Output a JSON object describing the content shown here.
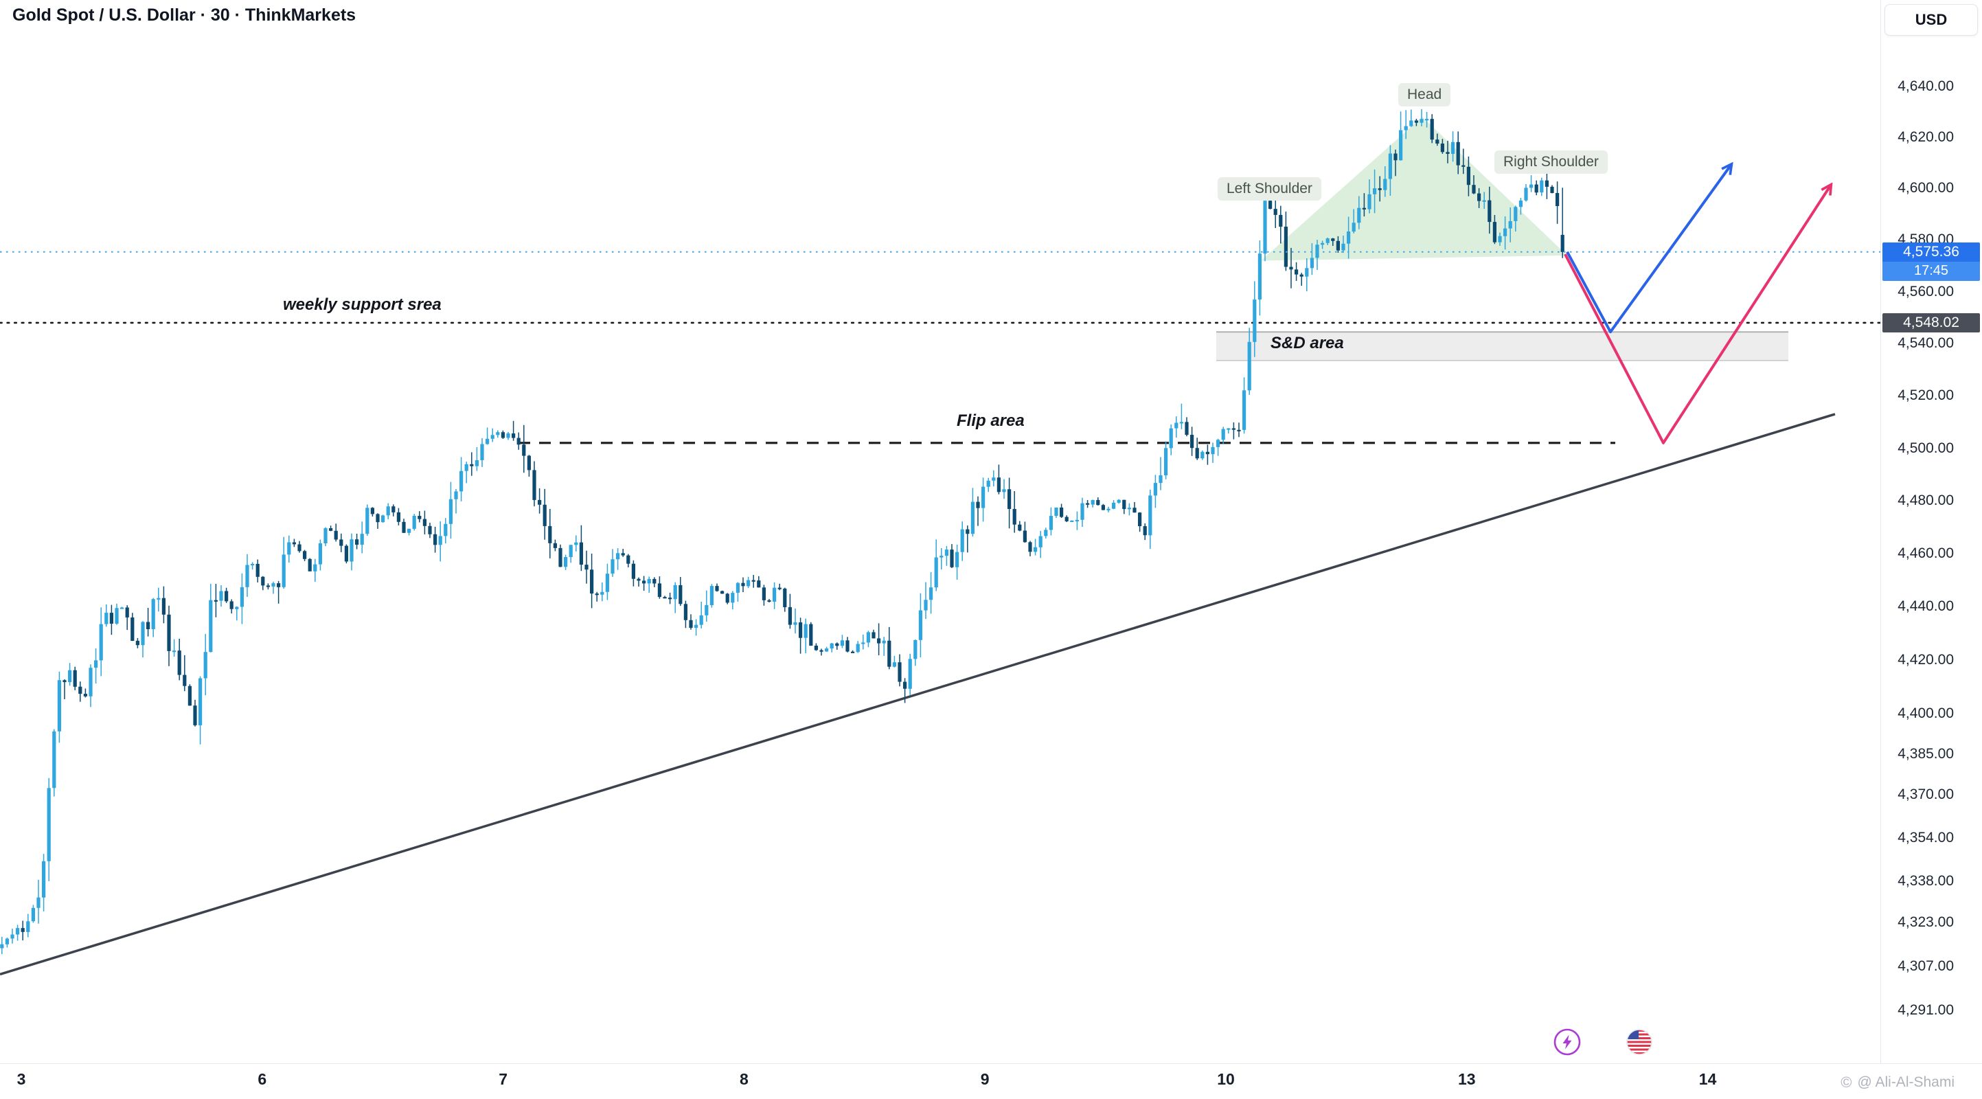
{
  "header": {
    "symbol_title": "Gold Spot / U.S. Dollar · 30 · ThinkMarkets",
    "currency_button": "USD"
  },
  "annotations": {
    "weekly_support_label": "weekly support srea",
    "sd_area_label": "S&D area",
    "flip_area_label": "Flip area",
    "left_shoulder_label": "Left Shoulder",
    "head_label": "Head",
    "right_shoulder_label": "Right Shoulder"
  },
  "price_scale": {
    "current_price": "4,575.36",
    "countdown": "17:45",
    "support_tag": "4,548.02",
    "colors": {
      "price_badge_bg": "#2672ec",
      "countdown_badge_bg": "#418ef2",
      "support_badge_bg": "#4a4e58"
    }
  },
  "watermark": {
    "text": "@ Ali-Al-Shami"
  },
  "chart_data": {
    "type": "candlestick",
    "title": "Gold Spot / U.S. Dollar",
    "interval_minutes": 30,
    "broker": "ThinkMarkets",
    "quote_currency": "USD",
    "scale": "log",
    "last_price": 4575.36,
    "bar_countdown": "17:45",
    "ylim": [
      4280,
      4650
    ],
    "y_ticks": [
      4640,
      4620,
      4600,
      4580,
      4560,
      4540,
      4520,
      4500,
      4480,
      4460,
      4440,
      4420,
      4400,
      4385,
      4370,
      4354,
      4338,
      4323,
      4307,
      4291
    ],
    "x_day_labels": [
      "3",
      "6",
      "7",
      "8",
      "9",
      "10",
      "13",
      "14"
    ],
    "levels": {
      "weekly_support_price": 4548.02,
      "flip_area_price": 4502,
      "sd_zone_price_range": [
        4533.5,
        4544.5
      ],
      "trendline": [
        [
          0,
          4304
        ],
        [
          2672,
          4513
        ]
      ]
    },
    "pattern": {
      "name": "Head and Shoulders",
      "left_shoulder_high": 4601,
      "head_high": 4631,
      "right_shoulder_high": 4600,
      "overlay_triangle": [
        [
          1836,
          4572
        ],
        [
          2071,
          4628
        ],
        [
          2282,
          4574
        ]
      ]
    },
    "projections": {
      "bullish": {
        "color": "#2b63e8",
        "points": [
          [
            2282,
            4575.4
          ],
          [
            2345,
            4544.5
          ],
          [
            2520,
            4609
          ]
        ]
      },
      "bearish": {
        "color": "#e8336e",
        "points": [
          [
            2279,
            4574.5
          ],
          [
            2422,
            4502
          ],
          [
            2665,
            4601
          ]
        ]
      }
    },
    "colors": {
      "up_candle": "#2fa6dd",
      "down_candle": "#0d4a70",
      "current_price_line": "#45a6e5",
      "pattern_fill": "rgba(76,175,80,0.20)",
      "trendline": "#3c434c",
      "support_line": "#1b1b1b",
      "flip_line": "#1b1b1b"
    },
    "price_path": [
      [
        0,
        4313
      ],
      [
        28,
        4318
      ],
      [
        55,
        4326
      ],
      [
        66,
        4350
      ],
      [
        77,
        4390
      ],
      [
        92,
        4418
      ],
      [
        106,
        4412
      ],
      [
        120,
        4406
      ],
      [
        134,
        4420
      ],
      [
        147,
        4428
      ],
      [
        161,
        4436
      ],
      [
        175,
        4442
      ],
      [
        189,
        4432
      ],
      [
        202,
        4426
      ],
      [
        216,
        4436
      ],
      [
        230,
        4446
      ],
      [
        244,
        4430
      ],
      [
        258,
        4414
      ],
      [
        272,
        4404
      ],
      [
        285,
        4398
      ],
      [
        299,
        4424
      ],
      [
        313,
        4448
      ],
      [
        327,
        4442
      ],
      [
        340,
        4438
      ],
      [
        354,
        4448
      ],
      [
        368,
        4456
      ],
      [
        382,
        4450
      ],
      [
        396,
        4446
      ],
      [
        410,
        4456
      ],
      [
        423,
        4466
      ],
      [
        437,
        4460
      ],
      [
        451,
        4455
      ],
      [
        465,
        4462
      ],
      [
        479,
        4470
      ],
      [
        492,
        4464
      ],
      [
        506,
        4458
      ],
      [
        520,
        4468
      ],
      [
        534,
        4476
      ],
      [
        552,
        4472
      ],
      [
        570,
        4478
      ],
      [
        589,
        4466
      ],
      [
        607,
        4476
      ],
      [
        625,
        4468
      ],
      [
        635,
        4460
      ],
      [
        653,
        4480
      ],
      [
        672,
        4488
      ],
      [
        690,
        4496
      ],
      [
        709,
        4500
      ],
      [
        727,
        4505
      ],
      [
        755,
        4503
      ],
      [
        773,
        4491
      ],
      [
        791,
        4471
      ],
      [
        805,
        4462
      ],
      [
        819,
        4455
      ],
      [
        837,
        4466
      ],
      [
        856,
        4451
      ],
      [
        874,
        4441
      ],
      [
        893,
        4456
      ],
      [
        911,
        4461
      ],
      [
        929,
        4446
      ],
      [
        948,
        4453
      ],
      [
        966,
        4441
      ],
      [
        985,
        4447
      ],
      [
        1003,
        4429
      ],
      [
        1021,
        4441
      ],
      [
        1040,
        4448
      ],
      [
        1058,
        4442
      ],
      [
        1077,
        4447
      ],
      [
        1095,
        4451
      ],
      [
        1113,
        4442
      ],
      [
        1132,
        4447
      ],
      [
        1150,
        4437
      ],
      [
        1169,
        4431
      ],
      [
        1187,
        4422
      ],
      [
        1205,
        4425
      ],
      [
        1224,
        4427
      ],
      [
        1242,
        4421
      ],
      [
        1261,
        4431
      ],
      [
        1279,
        4426
      ],
      [
        1297,
        4420
      ],
      [
        1316,
        4410
      ],
      [
        1334,
        4433
      ],
      [
        1353,
        4447
      ],
      [
        1371,
        4461
      ],
      [
        1389,
        4456
      ],
      [
        1408,
        4471
      ],
      [
        1426,
        4481
      ],
      [
        1445,
        4488
      ],
      [
        1463,
        4479
      ],
      [
        1481,
        4469
      ],
      [
        1500,
        4461
      ],
      [
        1518,
        4471
      ],
      [
        1537,
        4477
      ],
      [
        1555,
        4471
      ],
      [
        1573,
        4477
      ],
      [
        1592,
        4481
      ],
      [
        1610,
        4476
      ],
      [
        1629,
        4481
      ],
      [
        1647,
        4475
      ],
      [
        1665,
        4469
      ],
      [
        1684,
        4486
      ],
      [
        1702,
        4501
      ],
      [
        1721,
        4513
      ],
      [
        1739,
        4493
      ],
      [
        1757,
        4501
      ],
      [
        1776,
        4506
      ],
      [
        1794,
        4509
      ],
      [
        1807,
        4513
      ],
      [
        1818,
        4537
      ],
      [
        1827,
        4560
      ],
      [
        1836,
        4584
      ],
      [
        1844,
        4596
      ],
      [
        1852,
        4590
      ],
      [
        1861,
        4585
      ],
      [
        1874,
        4571
      ],
      [
        1887,
        4565
      ],
      [
        1896,
        4564
      ],
      [
        1914,
        4576
      ],
      [
        1933,
        4581
      ],
      [
        1951,
        4575
      ],
      [
        1969,
        4586
      ],
      [
        1988,
        4591
      ],
      [
        2006,
        4601
      ],
      [
        2025,
        4611
      ],
      [
        2043,
        4620
      ],
      [
        2061,
        4627
      ],
      [
        2072,
        4626
      ],
      [
        2080,
        4622
      ],
      [
        2098,
        4613
      ],
      [
        2117,
        4618
      ],
      [
        2126,
        4609
      ],
      [
        2144,
        4599
      ],
      [
        2163,
        4589
      ],
      [
        2172,
        4581
      ],
      [
        2190,
        4583
      ],
      [
        2209,
        4591
      ],
      [
        2227,
        4598
      ],
      [
        2245,
        4601
      ],
      [
        2260,
        4595
      ],
      [
        2273,
        4583
      ],
      [
        2282,
        4575.4
      ]
    ]
  }
}
